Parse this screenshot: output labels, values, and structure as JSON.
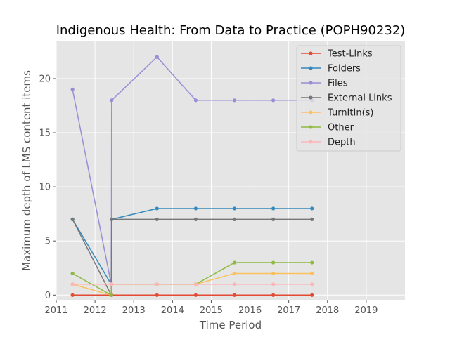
{
  "chart_data": {
    "type": "line",
    "title": "Indigenous Health: From Data to Practice (POPH90232)",
    "xlabel": "Time Period",
    "ylabel": "Maximum depth of LMS content items",
    "xlim": [
      2011.0,
      2020.0
    ],
    "ylim": [
      -0.5,
      23.5
    ],
    "xticks": [
      2011,
      2012,
      2013,
      2014,
      2015,
      2016,
      2017,
      2018,
      2019
    ],
    "yticks": [
      0,
      5,
      10,
      15,
      20
    ],
    "grid": true,
    "legend_position": "top-right",
    "series": [
      {
        "name": "Test-Links",
        "color": "#E24A33",
        "points": [
          [
            2011.42,
            0
          ],
          [
            2012.42,
            0
          ],
          [
            2012.43,
            0
          ],
          [
            2013.6,
            0
          ],
          [
            2014.6,
            0
          ],
          [
            2015.6,
            0
          ],
          [
            2016.6,
            0
          ],
          [
            2017.6,
            0
          ]
        ]
      },
      {
        "name": "Folders",
        "color": "#348ABD",
        "points": [
          [
            2011.42,
            7
          ],
          [
            2012.42,
            1
          ],
          [
            2012.43,
            7
          ],
          [
            2013.6,
            8
          ],
          [
            2014.6,
            8
          ],
          [
            2015.6,
            8
          ],
          [
            2016.6,
            8
          ],
          [
            2017.6,
            8
          ]
        ]
      },
      {
        "name": "Files",
        "color": "#988ED5",
        "points": [
          [
            2011.42,
            19
          ],
          [
            2012.42,
            1
          ],
          [
            2012.43,
            18
          ],
          [
            2013.6,
            22
          ],
          [
            2014.6,
            18
          ],
          [
            2015.6,
            18
          ],
          [
            2016.6,
            18
          ],
          [
            2017.6,
            18
          ]
        ]
      },
      {
        "name": "External Links",
        "color": "#777777",
        "points": [
          [
            2011.42,
            7
          ],
          [
            2012.42,
            0
          ],
          [
            2012.43,
            7
          ],
          [
            2013.6,
            7
          ],
          [
            2014.6,
            7
          ],
          [
            2015.6,
            7
          ],
          [
            2016.6,
            7
          ],
          [
            2017.6,
            7
          ]
        ]
      },
      {
        "name": "TurnItIn(s)",
        "color": "#FBC15E",
        "points": [
          [
            2011.42,
            1
          ],
          [
            2012.42,
            0
          ],
          [
            2012.43,
            1
          ],
          [
            2013.6,
            1
          ],
          [
            2014.6,
            1
          ],
          [
            2015.6,
            2
          ],
          [
            2016.6,
            2
          ],
          [
            2017.6,
            2
          ]
        ]
      },
      {
        "name": "Other",
        "color": "#8EBA42",
        "points": [
          [
            2011.42,
            2
          ],
          [
            2012.42,
            0
          ],
          [
            2012.43,
            1
          ],
          [
            2013.6,
            1
          ],
          [
            2014.6,
            1
          ],
          [
            2015.6,
            3
          ],
          [
            2016.6,
            3
          ],
          [
            2017.6,
            3
          ]
        ]
      },
      {
        "name": "Depth",
        "color": "#FFB5B8",
        "points": [
          [
            2011.42,
            1
          ],
          [
            2012.42,
            1
          ],
          [
            2012.43,
            1
          ],
          [
            2013.6,
            1
          ],
          [
            2014.6,
            1
          ],
          [
            2015.6,
            1
          ],
          [
            2016.6,
            1
          ],
          [
            2017.6,
            1
          ]
        ]
      }
    ]
  }
}
